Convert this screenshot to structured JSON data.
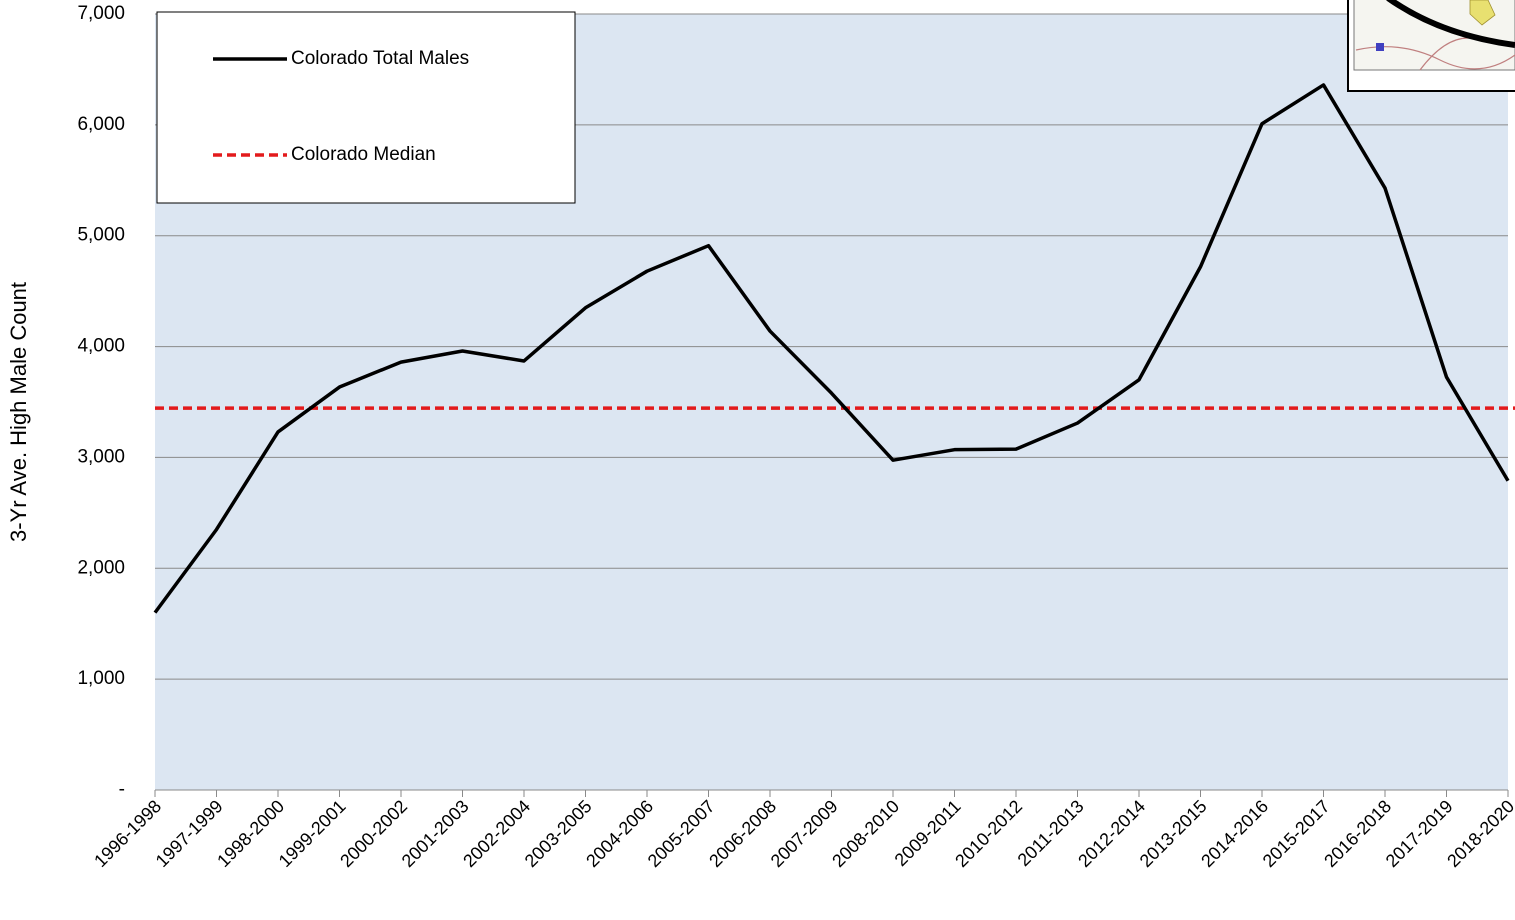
{
  "chart_data": {
    "type": "line",
    "ylabel": "3-Yr  Ave. High Male Count",
    "categories": [
      "1996-1998",
      "1997-1999",
      "1998-2000",
      "1999-2001",
      "2000-2002",
      "2001-2003",
      "2002-2004",
      "2003-2005",
      "2004-2006",
      "2005-2007",
      "2006-2008",
      "2007-2009",
      "2008-2010",
      "2009-2011",
      "2010-2012",
      "2011-2013",
      "2012-2014",
      "2013-2015",
      "2014-2016",
      "2015-2017",
      "2016-2018",
      "2017-2019",
      "2018-2020"
    ],
    "series": [
      {
        "name": "Colorado Total Males",
        "color": "#000000",
        "values": [
          1600,
          2350,
          3230,
          3635,
          3860,
          3960,
          3870,
          4350,
          4680,
          4910,
          4140,
          3580,
          2975,
          3070,
          3075,
          3310,
          3700,
          4720,
          6010,
          6360,
          5430,
          3725,
          2790
        ]
      }
    ],
    "reference_lines": [
      {
        "name": "Colorado Median",
        "color": "#e31a1c",
        "value": 3445
      }
    ],
    "ylim": [
      0,
      7000
    ],
    "yticks": [
      {
        "value": 0,
        "label": "-"
      },
      {
        "value": 1000,
        "label": "1,000"
      },
      {
        "value": 2000,
        "label": "2,000"
      },
      {
        "value": 3000,
        "label": "3,000"
      },
      {
        "value": 4000,
        "label": "4,000"
      },
      {
        "value": 5000,
        "label": "5,000"
      },
      {
        "value": 6000,
        "label": "6,000"
      },
      {
        "value": 7000,
        "label": "7,000"
      }
    ],
    "grid": true,
    "legend": "upper left",
    "plot_background": "#dce6f2"
  }
}
